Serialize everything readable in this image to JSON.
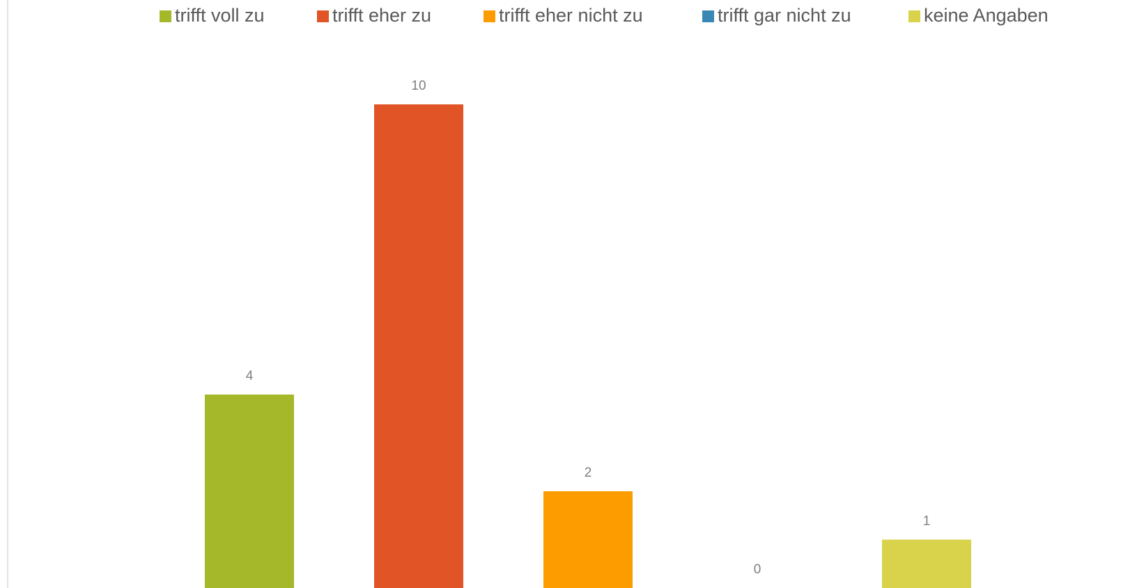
{
  "chart_data": {
    "type": "bar",
    "categories": [
      null
    ],
    "series": [
      {
        "name": "trifft voll zu",
        "color": "#a5b82a",
        "values": [
          4
        ]
      },
      {
        "name": "trifft eher zu",
        "color": "#e05426",
        "values": [
          10
        ]
      },
      {
        "name": "trifft eher nicht zu",
        "color": "#fd9c01",
        "values": [
          2
        ]
      },
      {
        "name": "trifft gar nicht zu",
        "color": "#3a87b5",
        "values": [
          0
        ]
      },
      {
        "name": "keine Angaben",
        "color": "#d8d34a",
        "values": [
          1
        ]
      }
    ],
    "ylim": [
      0,
      12
    ],
    "legend": "top"
  }
}
